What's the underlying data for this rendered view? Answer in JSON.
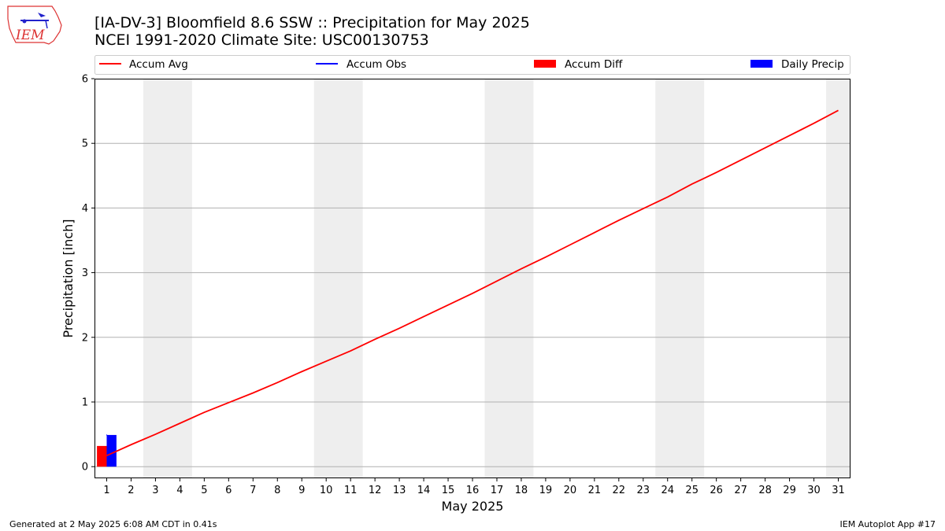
{
  "header": {
    "logo_text": "IEM",
    "title_line1": "[IA-DV-3] Bloomfield 8.6 SSW :: Precipitation for May 2025",
    "title_line2": "NCEI 1991-2020 Climate Site: USC00130753"
  },
  "footer": {
    "generated": "Generated at 2 May 2025 6:08 AM CDT in 0.41s",
    "app": "IEM Autoplot App #17"
  },
  "colors": {
    "accum_avg": "#ff0000",
    "accum_obs": "#0000ff",
    "accum_diff": "#ff0000",
    "daily_precip": "#0000ff",
    "weekend_band": "#eeeeee",
    "grid": "#b0b0b0"
  },
  "chart_data": {
    "type": "line",
    "xlabel": "May 2025",
    "ylabel": "Precipitation [inch]",
    "xlim": [
      0.5,
      31.5
    ],
    "ylim": [
      -0.18,
      6.0
    ],
    "y_ticks": [
      0,
      1,
      2,
      3,
      4,
      5,
      6
    ],
    "x_ticks": [
      1,
      2,
      3,
      4,
      5,
      6,
      7,
      8,
      9,
      10,
      11,
      12,
      13,
      14,
      15,
      16,
      17,
      18,
      19,
      20,
      21,
      22,
      23,
      24,
      25,
      26,
      27,
      28,
      29,
      30,
      31
    ],
    "grid": "y-major",
    "legend_placement": "top",
    "legend": [
      "Accum Avg",
      "Accum Obs",
      "Accum Diff",
      "Daily Precip"
    ],
    "weekend_bands": [
      [
        2.5,
        4.5
      ],
      [
        9.5,
        11.5
      ],
      [
        16.5,
        18.5
      ],
      [
        23.5,
        25.5
      ],
      [
        30.5,
        31.5
      ]
    ],
    "series": [
      {
        "name": "Accum Avg",
        "kind": "line",
        "x": [
          1,
          2,
          3,
          4,
          5,
          6,
          7,
          8,
          9,
          10,
          11,
          12,
          13,
          14,
          15,
          16,
          17,
          18,
          19,
          20,
          21,
          22,
          23,
          24,
          25,
          26,
          27,
          28,
          29,
          30,
          31
        ],
        "values": [
          0.17,
          0.34,
          0.5,
          0.67,
          0.84,
          0.99,
          1.14,
          1.3,
          1.47,
          1.63,
          1.79,
          1.97,
          2.14,
          2.32,
          2.5,
          2.68,
          2.87,
          3.06,
          3.24,
          3.43,
          3.62,
          3.81,
          3.99,
          4.17,
          4.37,
          4.55,
          4.74,
          4.93,
          5.12,
          5.31,
          5.51
        ]
      },
      {
        "name": "Accum Obs",
        "kind": "line",
        "x": [
          1
        ],
        "values": [
          0.49
        ]
      },
      {
        "name": "Accum Diff",
        "kind": "bar",
        "x": [
          1
        ],
        "values": [
          0.32
        ]
      },
      {
        "name": "Daily Precip",
        "kind": "bar",
        "x": [
          1
        ],
        "values": [
          0.49
        ]
      }
    ]
  }
}
